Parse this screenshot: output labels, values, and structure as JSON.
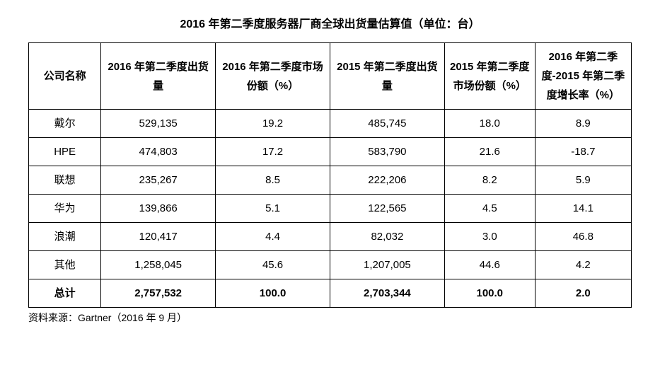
{
  "title": "2016 年第二季度服务器厂商全球出货量估算值（单位：台）",
  "title_fontsize": 16,
  "cell_fontsize": 15,
  "source_fontsize": 14,
  "columns": [
    "公司名称",
    "2016 年第二季度出货量",
    "2016 年第二季度市场份额（%）",
    "2015 年第二季度出货量",
    "2015 年第二季度市场份额（%）",
    "2016 年第二季度-2015 年第二季度增长率（%）"
  ],
  "rows": [
    {
      "company": "戴尔",
      "ship2016": "529,135",
      "share2016": "19.2",
      "ship2015": "485,745",
      "share2015": "18.0",
      "growth": "8.9"
    },
    {
      "company": "HPE",
      "ship2016": "474,803",
      "share2016": "17.2",
      "ship2015": "583,790",
      "share2015": "21.6",
      "growth": "-18.7"
    },
    {
      "company": "联想",
      "ship2016": "235,267",
      "share2016": "8.5",
      "ship2015": "222,206",
      "share2015": "8.2",
      "growth": "5.9"
    },
    {
      "company": "华为",
      "ship2016": "139,866",
      "share2016": "5.1",
      "ship2015": "122,565",
      "share2015": "4.5",
      "growth": "14.1"
    },
    {
      "company": "浪潮",
      "ship2016": "120,417",
      "share2016": "4.4",
      "ship2015": "82,032",
      "share2015": "3.0",
      "growth": "46.8"
    },
    {
      "company": "其他",
      "ship2016": "1,258,045",
      "share2016": "45.6",
      "ship2015": "1,207,005",
      "share2015": "44.6",
      "growth": "4.2"
    }
  ],
  "total": {
    "company": "总计",
    "ship2016": "2,757,532",
    "share2016": "100.0",
    "ship2015": "2,703,344",
    "share2015": "100.0",
    "growth": "2.0"
  },
  "source": "资料来源：Gartner（2016 年 9 月）",
  "colors": {
    "background": "#ffffff",
    "border": "#000000",
    "text": "#000000"
  },
  "col_widths_pct": [
    12,
    19,
    19,
    19,
    15,
    16
  ]
}
